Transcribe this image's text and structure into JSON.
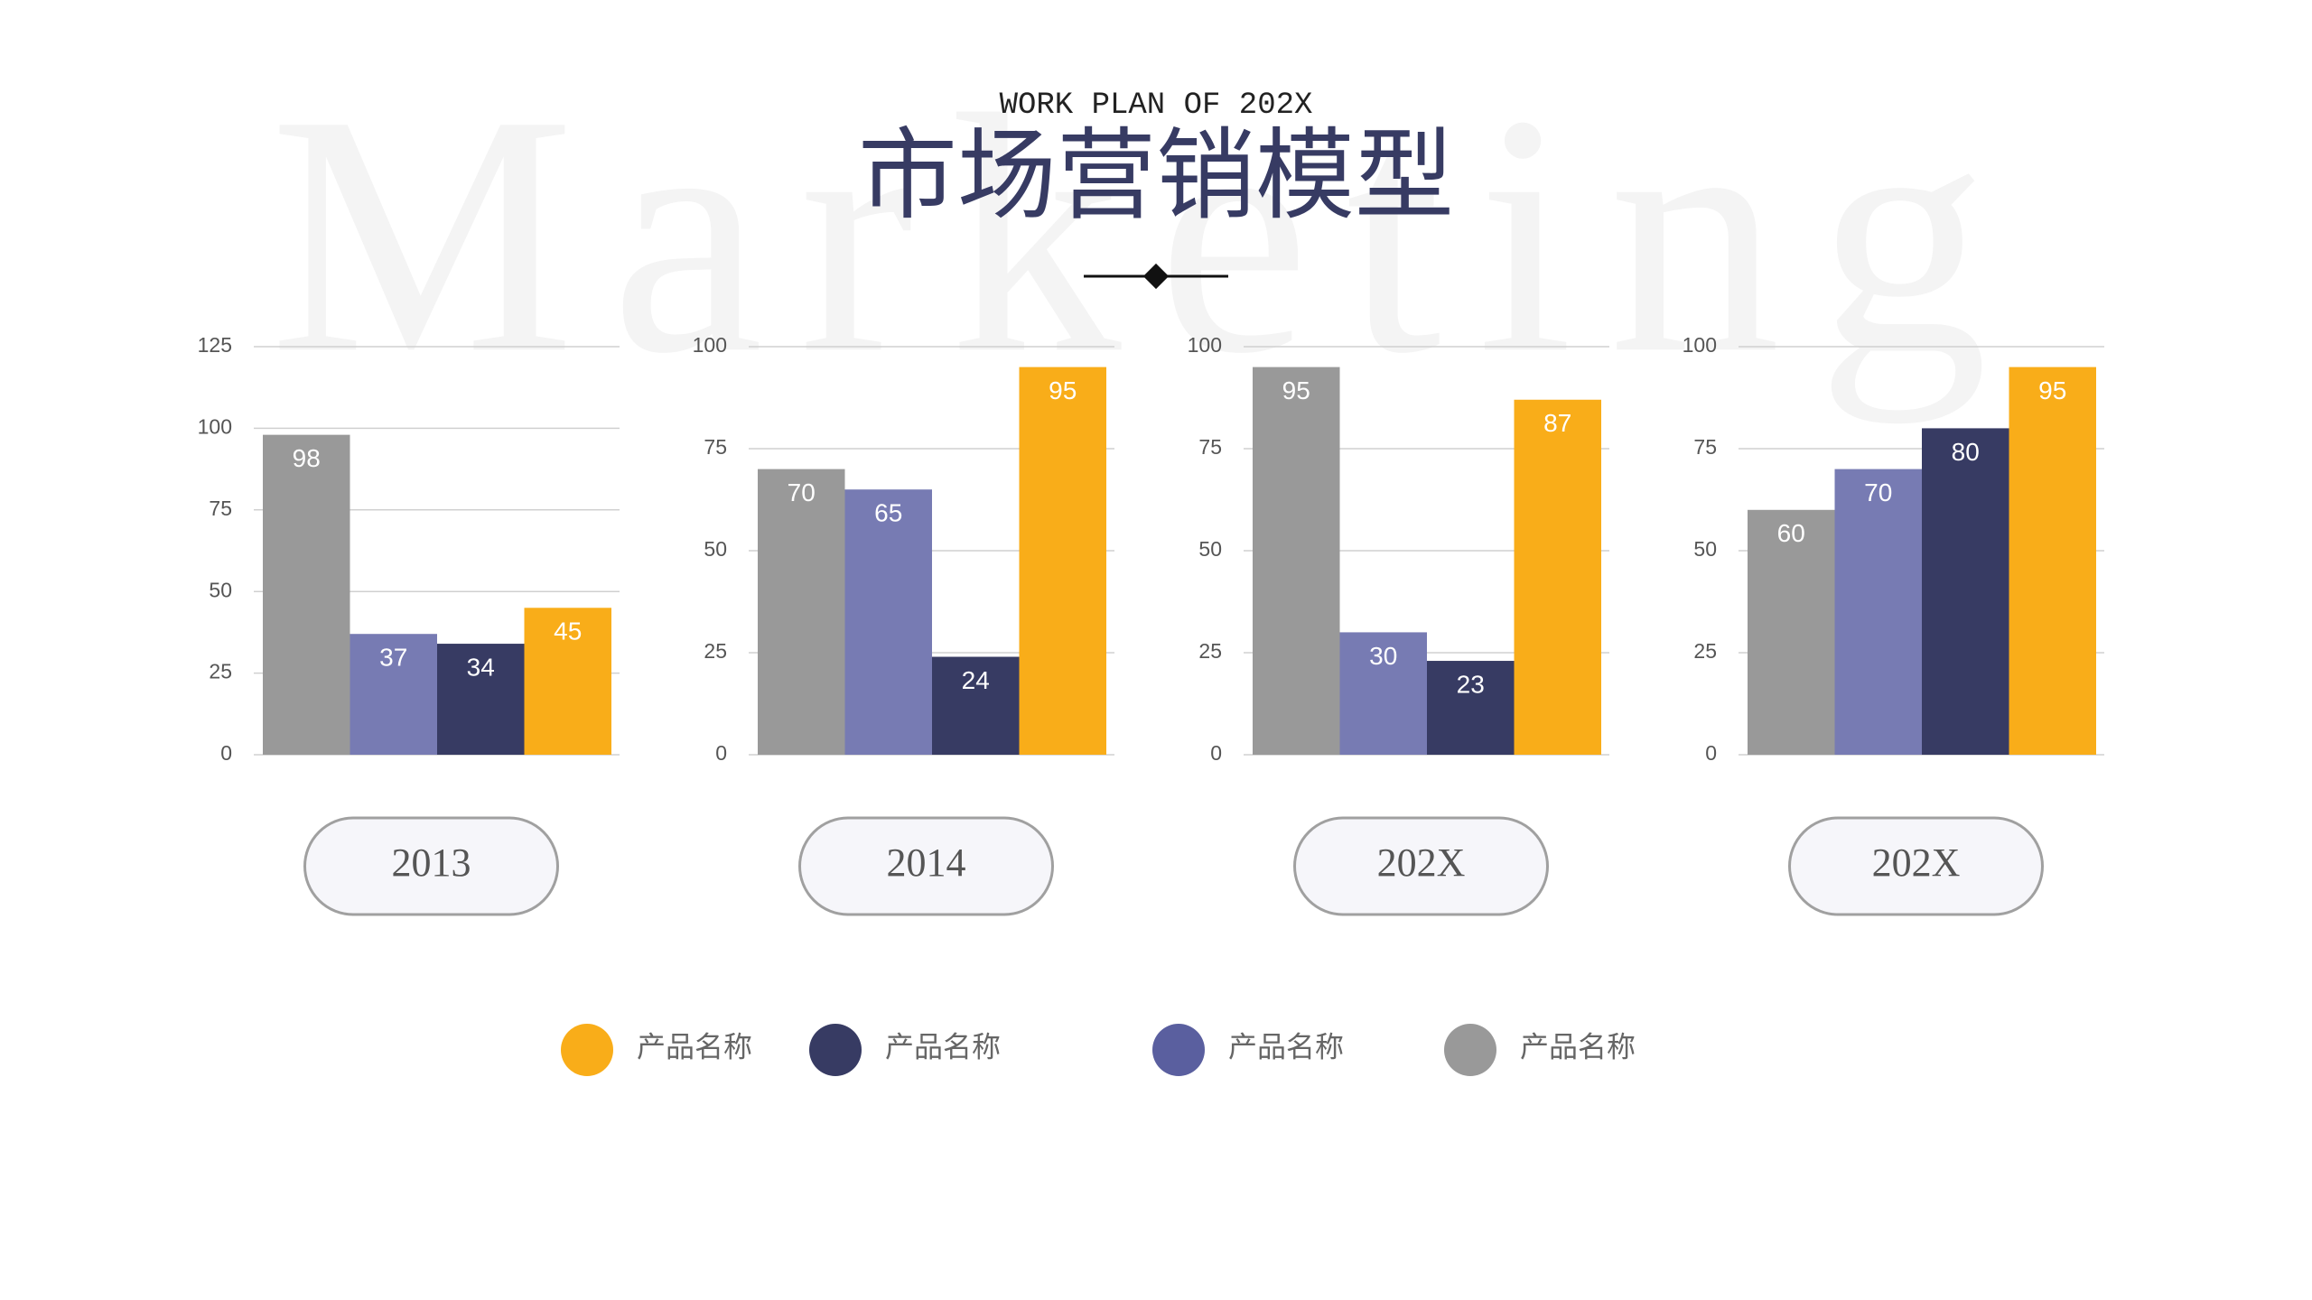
{
  "watermark": "Marketing",
  "header": {
    "subtitle": "WORK PLAN OF 202X",
    "title": "市场营销模型"
  },
  "chart_data": [
    {
      "type": "bar",
      "title": "2013",
      "values": [
        98,
        37,
        34,
        45
      ],
      "colors": [
        "#999999",
        "#777bb3",
        "#373b63",
        "#f9ad19"
      ],
      "ylim": [
        0,
        125
      ],
      "yticks": [
        0,
        25,
        50,
        75,
        100,
        125
      ],
      "grid": true
    },
    {
      "type": "bar",
      "title": "2014",
      "values": [
        70,
        65,
        24,
        95
      ],
      "colors": [
        "#999999",
        "#777bb3",
        "#373b63",
        "#f9ad19"
      ],
      "ylim": [
        0,
        100
      ],
      "yticks": [
        0,
        25,
        50,
        75,
        100
      ],
      "grid": true
    },
    {
      "type": "bar",
      "title": "202X",
      "values": [
        95,
        30,
        23,
        87
      ],
      "colors": [
        "#999999",
        "#777bb3",
        "#373b63",
        "#f9ad19"
      ],
      "ylim": [
        0,
        100
      ],
      "yticks": [
        0,
        25,
        50,
        75,
        100
      ],
      "grid": true
    },
    {
      "type": "bar",
      "title": "202X",
      "values": [
        60,
        70,
        80,
        95
      ],
      "colors": [
        "#999999",
        "#777bb3",
        "#373b63",
        "#f9ad19"
      ],
      "ylim": [
        0,
        100
      ],
      "yticks": [
        0,
        25,
        50,
        75,
        100
      ],
      "grid": true
    }
  ],
  "legend": [
    {
      "name": "产品名称",
      "color": "#f9ad19"
    },
    {
      "name": "产品名称",
      "color": "#373b63"
    },
    {
      "name": "产品名称",
      "color": "#5a5f9f"
    },
    {
      "name": "产品名称",
      "color": "#999999"
    }
  ]
}
